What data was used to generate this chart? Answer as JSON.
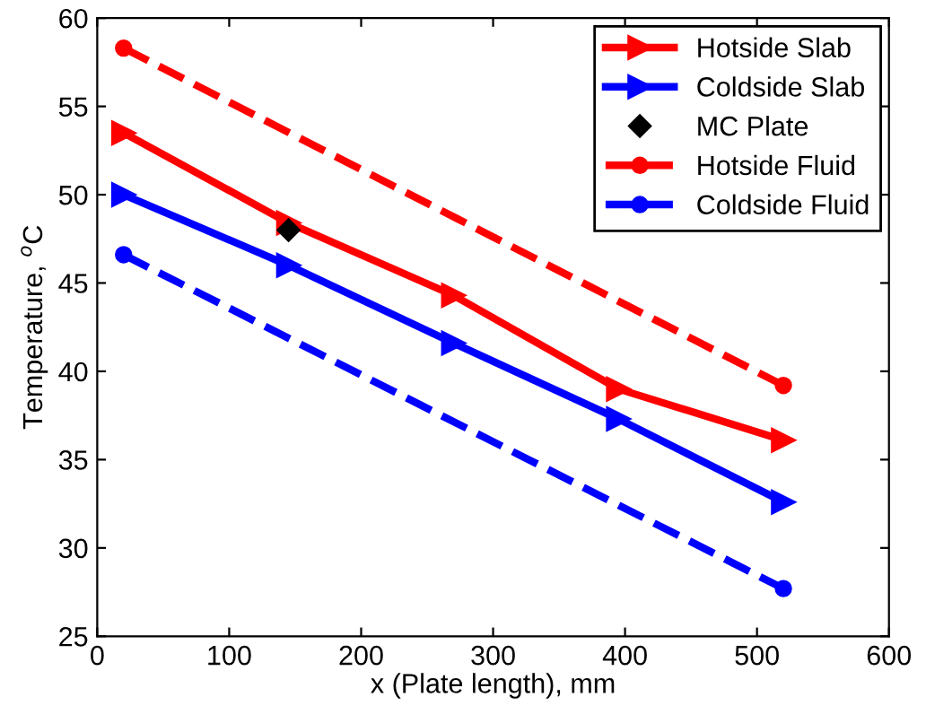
{
  "chart_data": {
    "type": "line",
    "xlabel": "x (Plate length), mm",
    "ylabel": "Temperature, $^{o}$C",
    "xlim": [
      0,
      600
    ],
    "xticks": [
      0,
      100,
      200,
      300,
      400,
      500,
      600
    ],
    "ylim": [
      25,
      60
    ],
    "yticks": [
      25,
      30,
      35,
      40,
      45,
      50,
      55,
      60
    ],
    "grid": false,
    "legend": "top right",
    "series": [
      {
        "name": "Hotside Slab",
        "color": "#ff0000",
        "marker": "triangle",
        "line_style": "solid",
        "x": [
          20,
          145,
          270,
          395,
          520
        ],
        "values": [
          53.5,
          48.4,
          44.3,
          39.0,
          36.1
        ]
      },
      {
        "name": "Coldside Slab",
        "color": "#0000ff",
        "marker": "triangle",
        "line_style": "solid",
        "x": [
          20,
          145,
          270,
          395,
          520
        ],
        "values": [
          50.0,
          46.0,
          41.6,
          37.3,
          32.6
        ]
      },
      {
        "name": "MC Plate",
        "type": "scatter",
        "color": "#000000",
        "marker": "diamond",
        "x": [
          145
        ],
        "values": [
          48.0
        ]
      },
      {
        "name": "Hotside Fluid",
        "color": "#ff0000",
        "marker": "circle",
        "line_style": "dashed",
        "x": [
          20,
          520
        ],
        "values": [
          58.3,
          39.2
        ]
      },
      {
        "name": "Coldside Fluid",
        "color": "#0000ff",
        "marker": "circle",
        "line_style": "dashed",
        "x": [
          20,
          520
        ],
        "values": [
          46.6,
          27.7
        ]
      }
    ]
  }
}
